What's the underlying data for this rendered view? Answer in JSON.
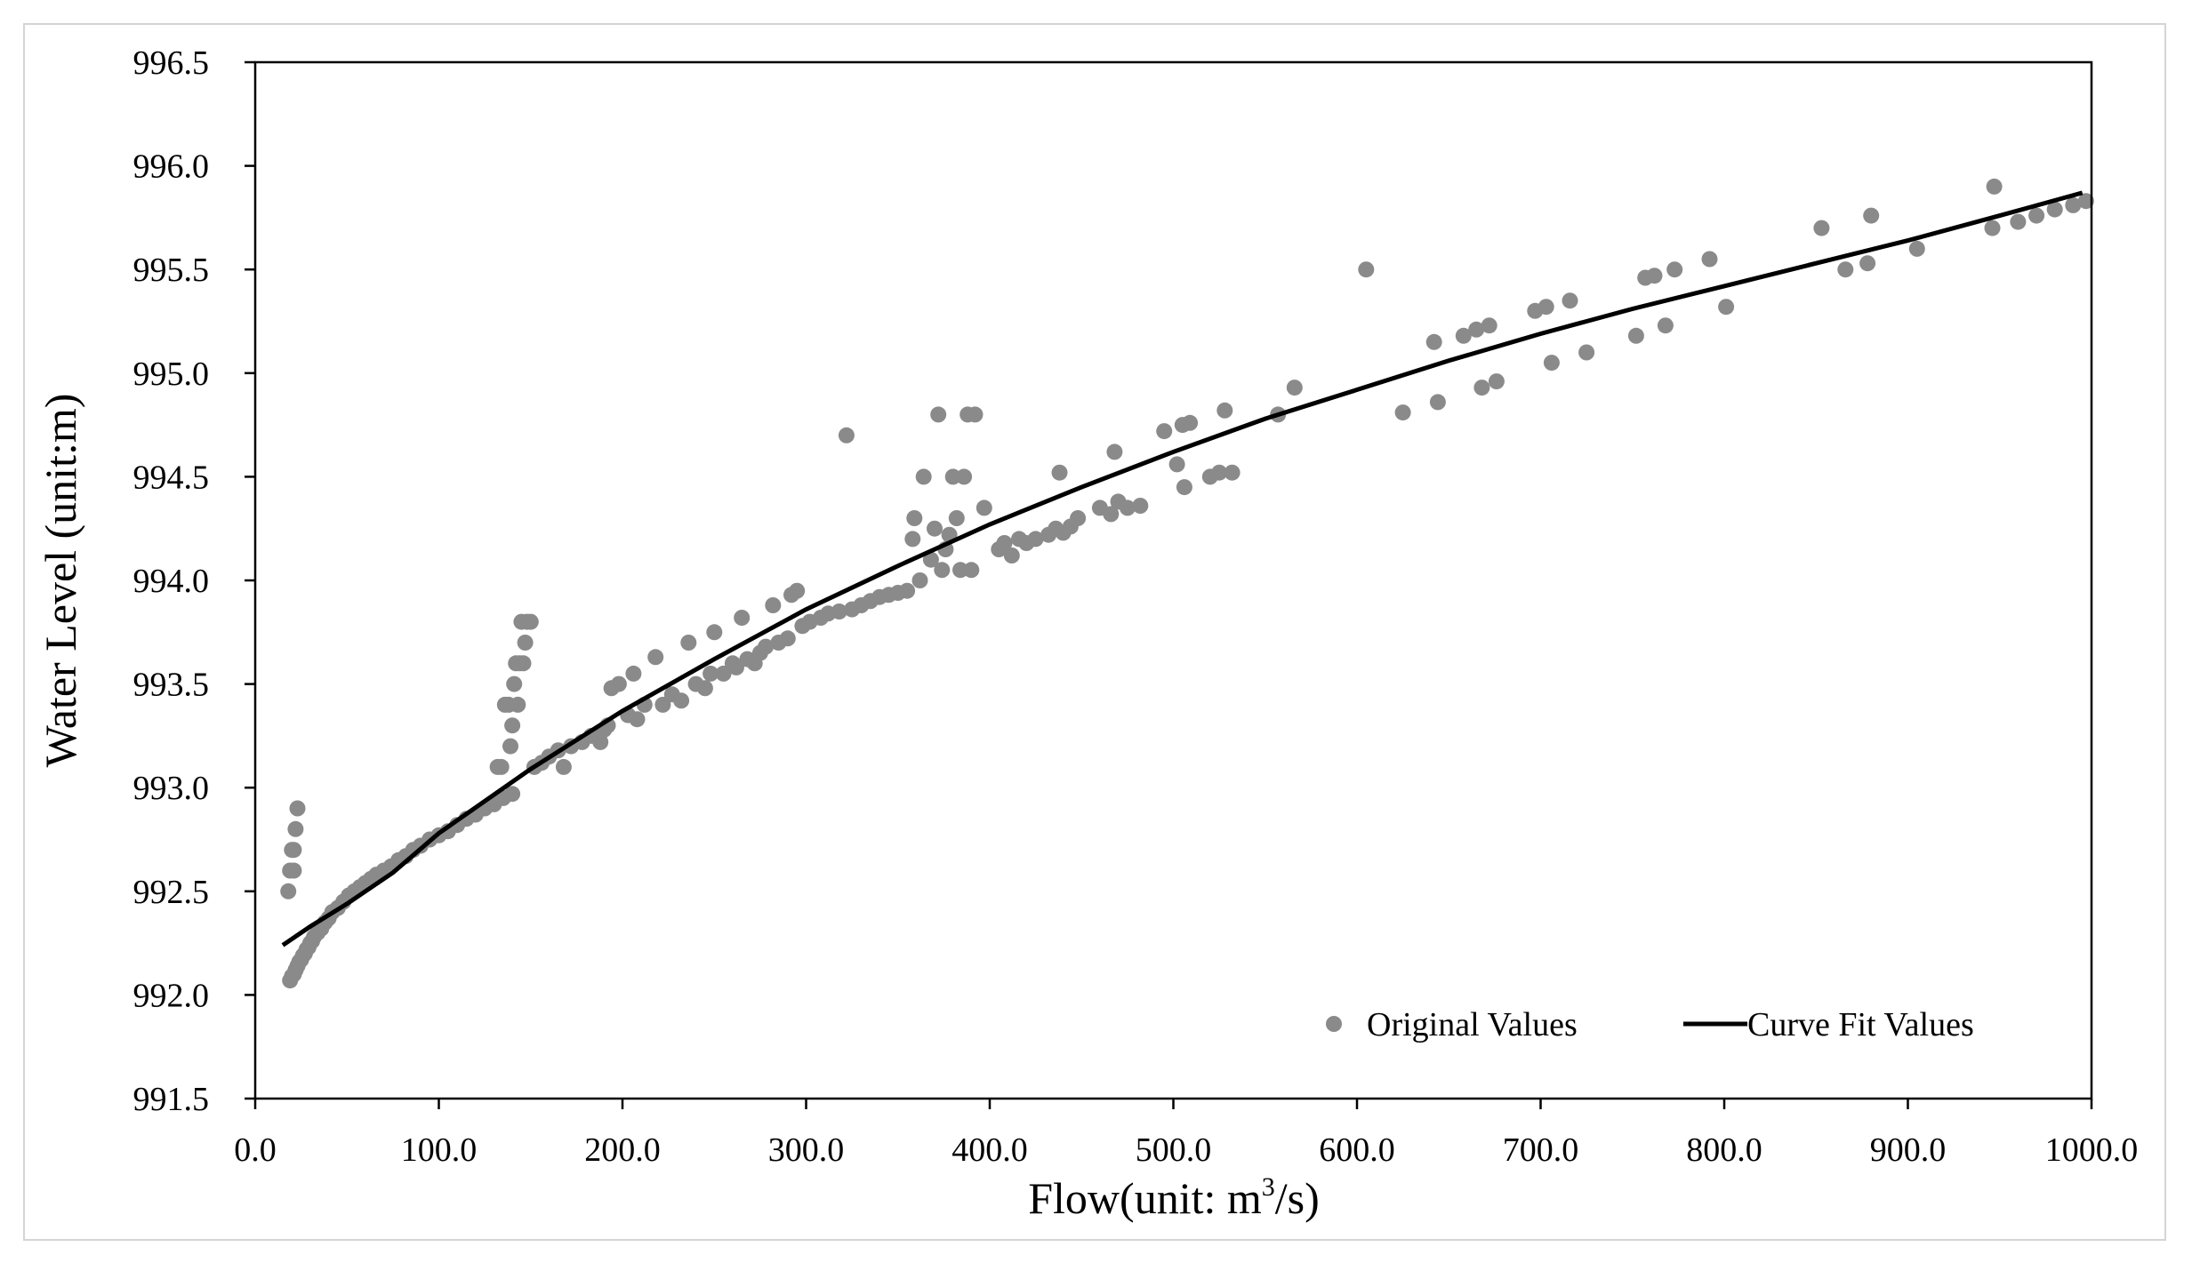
{
  "chart_data": {
    "type": "scatter",
    "xlabel": "Flow(unit: m³/s)",
    "xlabel_parts": {
      "pre": "Flow(unit: m",
      "sup": "3",
      "post": "/s)"
    },
    "ylabel": "Water Level (unit:m)",
    "xlim": [
      0,
      1000
    ],
    "ylim": [
      991.5,
      996.5
    ],
    "x_ticks": [
      0,
      100,
      200,
      300,
      400,
      500,
      600,
      700,
      800,
      900,
      1000
    ],
    "y_ticks": [
      991.5,
      992.0,
      992.5,
      993.0,
      993.5,
      994.0,
      994.5,
      995.0,
      995.5,
      996.0,
      996.5
    ],
    "x_tick_labels": [
      "0.0",
      "100.0",
      "200.0",
      "300.0",
      "400.0",
      "500.0",
      "600.0",
      "700.0",
      "800.0",
      "900.0",
      "1000.0"
    ],
    "y_tick_labels": [
      "991.5",
      "992.0",
      "992.5",
      "993.0",
      "993.5",
      "994.0",
      "994.5",
      "995.0",
      "995.5",
      "996.0",
      "996.5"
    ],
    "grid": false,
    "legend_position": "bottom-right",
    "colors": {
      "points": "#8a8a8a",
      "curve": "#000000",
      "axis": "#000000"
    },
    "series": [
      {
        "name": "Original Values",
        "kind": "scatter",
        "points": [
          [
            18,
            992.5
          ],
          [
            19,
            992.6
          ],
          [
            20,
            992.7
          ],
          [
            21,
            992.6
          ],
          [
            22,
            992.8
          ],
          [
            23,
            992.9
          ],
          [
            21,
            992.7
          ],
          [
            19,
            992.07
          ],
          [
            20,
            992.09
          ],
          [
            21,
            992.1
          ],
          [
            22,
            992.12
          ],
          [
            23,
            992.14
          ],
          [
            24,
            992.16
          ],
          [
            25,
            992.17
          ],
          [
            26,
            992.19
          ],
          [
            27,
            992.2
          ],
          [
            28,
            992.22
          ],
          [
            29,
            992.23
          ],
          [
            30,
            992.25
          ],
          [
            31,
            992.26
          ],
          [
            32,
            992.28
          ],
          [
            34,
            992.3
          ],
          [
            36,
            992.32
          ],
          [
            38,
            992.35
          ],
          [
            40,
            992.37
          ],
          [
            42,
            992.4
          ],
          [
            45,
            992.42
          ],
          [
            48,
            992.45
          ],
          [
            51,
            992.48
          ],
          [
            54,
            992.5
          ],
          [
            57,
            992.52
          ],
          [
            60,
            992.54
          ],
          [
            63,
            992.56
          ],
          [
            66,
            992.58
          ],
          [
            70,
            992.6
          ],
          [
            74,
            992.62
          ],
          [
            78,
            992.65
          ],
          [
            82,
            992.67
          ],
          [
            86,
            992.7
          ],
          [
            90,
            992.72
          ],
          [
            95,
            992.75
          ],
          [
            100,
            992.77
          ],
          [
            105,
            992.79
          ],
          [
            110,
            992.82
          ],
          [
            115,
            992.85
          ],
          [
            120,
            992.87
          ],
          [
            125,
            992.9
          ],
          [
            130,
            992.92
          ],
          [
            135,
            992.95
          ],
          [
            132,
            993.1
          ],
          [
            134,
            993.1
          ],
          [
            136,
            993.4
          ],
          [
            138,
            993.4
          ],
          [
            139,
            993.2
          ],
          [
            140,
            993.3
          ],
          [
            141,
            993.5
          ],
          [
            142,
            993.6
          ],
          [
            143,
            993.4
          ],
          [
            144,
            993.6
          ],
          [
            145,
            993.8
          ],
          [
            146,
            993.6
          ],
          [
            147,
            993.7
          ],
          [
            148,
            993.8
          ],
          [
            150,
            993.8
          ],
          [
            140,
            992.97
          ],
          [
            152,
            993.1
          ],
          [
            156,
            993.12
          ],
          [
            160,
            993.15
          ],
          [
            165,
            993.18
          ],
          [
            168,
            993.1
          ],
          [
            172,
            993.2
          ],
          [
            178,
            993.22
          ],
          [
            183,
            993.25
          ],
          [
            188,
            993.22
          ],
          [
            190,
            993.28
          ],
          [
            192,
            993.3
          ],
          [
            194,
            993.48
          ],
          [
            198,
            993.5
          ],
          [
            203,
            993.35
          ],
          [
            206,
            993.55
          ],
          [
            208,
            993.33
          ],
          [
            212,
            993.4
          ],
          [
            218,
            993.63
          ],
          [
            222,
            993.4
          ],
          [
            227,
            993.45
          ],
          [
            232,
            993.42
          ],
          [
            236,
            993.7
          ],
          [
            240,
            993.5
          ],
          [
            245,
            993.48
          ],
          [
            248,
            993.55
          ],
          [
            250,
            993.75
          ],
          [
            255,
            993.55
          ],
          [
            260,
            993.6
          ],
          [
            262,
            993.58
          ],
          [
            265,
            993.82
          ],
          [
            268,
            993.62
          ],
          [
            272,
            993.6
          ],
          [
            275,
            993.65
          ],
          [
            278,
            993.68
          ],
          [
            282,
            993.88
          ],
          [
            285,
            993.7
          ],
          [
            290,
            993.72
          ],
          [
            292,
            993.93
          ],
          [
            295,
            993.95
          ],
          [
            298,
            993.78
          ],
          [
            302,
            993.8
          ],
          [
            308,
            993.82
          ],
          [
            312,
            993.84
          ],
          [
            318,
            993.85
          ],
          [
            322,
            994.7
          ],
          [
            325,
            993.86
          ],
          [
            330,
            993.88
          ],
          [
            335,
            993.9
          ],
          [
            340,
            993.92
          ],
          [
            345,
            993.93
          ],
          [
            350,
            993.94
          ],
          [
            355,
            993.95
          ],
          [
            358,
            994.2
          ],
          [
            359,
            994.3
          ],
          [
            362,
            994.0
          ],
          [
            364,
            994.5
          ],
          [
            368,
            994.1
          ],
          [
            370,
            994.25
          ],
          [
            372,
            994.8
          ],
          [
            374,
            994.05
          ],
          [
            376,
            994.15
          ],
          [
            378,
            994.22
          ],
          [
            380,
            994.5
          ],
          [
            382,
            994.3
          ],
          [
            384,
            994.05
          ],
          [
            386,
            994.5
          ],
          [
            388,
            994.8
          ],
          [
            390,
            994.05
          ],
          [
            392,
            994.8
          ],
          [
            397,
            994.35
          ],
          [
            405,
            994.15
          ],
          [
            408,
            994.18
          ],
          [
            412,
            994.12
          ],
          [
            416,
            994.2
          ],
          [
            420,
            994.18
          ],
          [
            425,
            994.2
          ],
          [
            432,
            994.22
          ],
          [
            436,
            994.25
          ],
          [
            438,
            994.52
          ],
          [
            440,
            994.23
          ],
          [
            444,
            994.26
          ],
          [
            448,
            994.3
          ],
          [
            460,
            994.35
          ],
          [
            466,
            994.32
          ],
          [
            468,
            994.62
          ],
          [
            470,
            994.38
          ],
          [
            475,
            994.35
          ],
          [
            482,
            994.36
          ],
          [
            495,
            994.72
          ],
          [
            502,
            994.56
          ],
          [
            505,
            994.75
          ],
          [
            506,
            994.45
          ],
          [
            509,
            994.76
          ],
          [
            520,
            994.5
          ],
          [
            525,
            994.52
          ],
          [
            528,
            994.82
          ],
          [
            532,
            994.52
          ],
          [
            557,
            994.8
          ],
          [
            566,
            994.93
          ],
          [
            605,
            995.5
          ],
          [
            625,
            994.81
          ],
          [
            642,
            995.15
          ],
          [
            644,
            994.86
          ],
          [
            658,
            995.18
          ],
          [
            665,
            995.21
          ],
          [
            668,
            994.93
          ],
          [
            672,
            995.23
          ],
          [
            676,
            994.96
          ],
          [
            697,
            995.3
          ],
          [
            703,
            995.32
          ],
          [
            706,
            995.05
          ],
          [
            716,
            995.35
          ],
          [
            725,
            995.1
          ],
          [
            752,
            995.18
          ],
          [
            757,
            995.46
          ],
          [
            762,
            995.47
          ],
          [
            768,
            995.23
          ],
          [
            773,
            995.5
          ],
          [
            792,
            995.55
          ],
          [
            801,
            995.32
          ],
          [
            853,
            995.7
          ],
          [
            866,
            995.5
          ],
          [
            878,
            995.53
          ],
          [
            880,
            995.76
          ],
          [
            905,
            995.6
          ],
          [
            946,
            995.7
          ],
          [
            947,
            995.9
          ],
          [
            960,
            995.73
          ],
          [
            970,
            995.76
          ],
          [
            980,
            995.79
          ],
          [
            990,
            995.81
          ],
          [
            997,
            995.83
          ]
        ]
      },
      {
        "name": "Curve Fit Values",
        "kind": "line",
        "points": [
          [
            15,
            992.24
          ],
          [
            30,
            992.33
          ],
          [
            50,
            992.44
          ],
          [
            75,
            992.59
          ],
          [
            100,
            992.78
          ],
          [
            150,
            993.09
          ],
          [
            200,
            993.37
          ],
          [
            250,
            993.62
          ],
          [
            300,
            993.86
          ],
          [
            350,
            994.07
          ],
          [
            400,
            994.27
          ],
          [
            450,
            994.45
          ],
          [
            500,
            994.62
          ],
          [
            550,
            994.78
          ],
          [
            600,
            994.92
          ],
          [
            650,
            995.06
          ],
          [
            700,
            995.19
          ],
          [
            750,
            995.31
          ],
          [
            800,
            995.42
          ],
          [
            850,
            995.53
          ],
          [
            900,
            995.64
          ],
          [
            950,
            995.76
          ],
          [
            995,
            995.87
          ]
        ]
      }
    ],
    "legend": {
      "items": [
        {
          "label": "Original Values"
        },
        {
          "label": "Curve Fit Values"
        }
      ]
    }
  }
}
